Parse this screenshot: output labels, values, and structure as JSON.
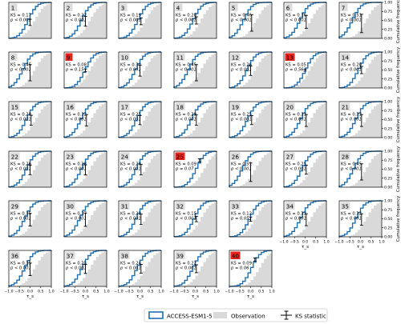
{
  "figure": {
    "xlabel": "τ_s",
    "ylabel": "Cumulative frequency",
    "x_ticks": [
      "−1.0",
      "−0.5",
      "0.0",
      "0.5",
      "1.0"
    ],
    "y_ticks": [
      "0.00",
      "0.25",
      "0.50",
      "0.75",
      "1.00"
    ],
    "colors": {
      "model_line": "#1f6fb3",
      "observation_fill": "#d9d9d9",
      "highlight_box": "#e8231c",
      "label_box": "#dcdcdc",
      "ks_bar": "#000000"
    }
  },
  "legend": {
    "items": [
      {
        "label": "ACCESS-ESM1-5",
        "kind": "step-line"
      },
      {
        "label": "Observation",
        "kind": "fill"
      },
      {
        "label": "KS statistic",
        "kind": "errorbar"
      }
    ]
  },
  "chart_data": {
    "type": "cdf-step-panels",
    "xlim": [
      -1.0,
      1.0
    ],
    "ylim": [
      0,
      1
    ],
    "grid": false,
    "legend_position": "bottom-right",
    "series_names": [
      "ACCESS-ESM1-5",
      "Observation"
    ],
    "panels": [
      {
        "id": "1",
        "ks": "KS = 0.17",
        "p": "p < 0.001",
        "highlight": false,
        "ks_x": 0.0,
        "ks_lo": 0.36,
        "ks_hi": 0.53
      },
      {
        "id": "2",
        "ks": "KS = 0.27",
        "p": "p < 0.001",
        "highlight": false,
        "ks_x": 0.0,
        "ks_lo": 0.34,
        "ks_hi": 0.61
      },
      {
        "id": "3",
        "ks": "KS = 0.19",
        "p": "p < 0.001",
        "highlight": false,
        "ks_x": 0.05,
        "ks_lo": 0.38,
        "ks_hi": 0.57
      },
      {
        "id": "4",
        "ks": "KS = 0.20",
        "p": "p < 0.001",
        "highlight": false,
        "ks_x": 0.05,
        "ks_lo": 0.4,
        "ks_hi": 0.6
      },
      {
        "id": "5",
        "ks": "KS = 0.46",
        "p": "p < 0.001",
        "highlight": false,
        "ks_x": 0.05,
        "ks_lo": 0.2,
        "ks_hi": 0.66
      },
      {
        "id": "6",
        "ks": "KS = 0.36",
        "p": "p < 0.001",
        "highlight": false,
        "ks_x": 0.05,
        "ks_lo": 0.28,
        "ks_hi": 0.64
      },
      {
        "id": "7",
        "ks": "KS = 0.51",
        "p": "p < 0.001",
        "highlight": false,
        "ks_x": 0.05,
        "ks_lo": 0.16,
        "ks_hi": 0.67
      },
      {
        "id": "8",
        "ks": "KS = 0.45",
        "p": "p < 0.001",
        "highlight": false,
        "ks_x": 0.0,
        "ks_lo": 0.2,
        "ks_hi": 0.65
      },
      {
        "id": "9",
        "ks": "KS = 0.08",
        "p": "p = 0.15",
        "highlight": true,
        "ks_x": 0.0,
        "ks_lo": 0.45,
        "ks_hi": 0.53
      },
      {
        "id": "10",
        "ks": "KS = 0.30",
        "p": "p < 0.001",
        "highlight": false,
        "ks_x": 0.0,
        "ks_lo": 0.33,
        "ks_hi": 0.63
      },
      {
        "id": "11",
        "ks": "KS = 0.45",
        "p": "p < 0.001",
        "highlight": false,
        "ks_x": 0.05,
        "ks_lo": 0.2,
        "ks_hi": 0.65
      },
      {
        "id": "12",
        "ks": "KS = 0.26",
        "p": "p < 0.001",
        "highlight": false,
        "ks_x": 0.0,
        "ks_lo": 0.35,
        "ks_hi": 0.61
      },
      {
        "id": "13",
        "ks": "KS = 0.05",
        "p": "p = 0.56",
        "highlight": true,
        "ks_x": 0.0,
        "ks_lo": 0.47,
        "ks_hi": 0.52
      },
      {
        "id": "14",
        "ks": "KS = 0.20",
        "p": "p < 0.001",
        "highlight": false,
        "ks_x": 0.05,
        "ks_lo": 0.4,
        "ks_hi": 0.6
      },
      {
        "id": "15",
        "ks": "KS = 0.28",
        "p": "p < 0.001",
        "highlight": false,
        "ks_x": 0.05,
        "ks_lo": 0.34,
        "ks_hi": 0.62
      },
      {
        "id": "16",
        "ks": "KS = 0.32",
        "p": "p < 0.001",
        "highlight": false,
        "ks_x": 0.05,
        "ks_lo": 0.32,
        "ks_hi": 0.64
      },
      {
        "id": "17",
        "ks": "KS = 0.25",
        "p": "p < 0.001",
        "highlight": false,
        "ks_x": 0.0,
        "ks_lo": 0.36,
        "ks_hi": 0.61
      },
      {
        "id": "18",
        "ks": "KS = 0.29",
        "p": "p < 0.001",
        "highlight": false,
        "ks_x": 0.05,
        "ks_lo": 0.34,
        "ks_hi": 0.63
      },
      {
        "id": "19",
        "ks": "KS = 0.25",
        "p": "p < 0.001",
        "highlight": false,
        "ks_x": 0.05,
        "ks_lo": 0.36,
        "ks_hi": 0.61
      },
      {
        "id": "20",
        "ks": "KS = 0.33",
        "p": "p < 0.001",
        "highlight": false,
        "ks_x": 0.05,
        "ks_lo": 0.31,
        "ks_hi": 0.64
      },
      {
        "id": "21",
        "ks": "KS = 0.33",
        "p": "p < 0.001",
        "highlight": false,
        "ks_x": 0.05,
        "ks_lo": 0.31,
        "ks_hi": 0.64
      },
      {
        "id": "22",
        "ks": "KS = 0.26",
        "p": "p < 0.001",
        "highlight": false,
        "ks_x": 0.0,
        "ks_lo": 0.35,
        "ks_hi": 0.61
      },
      {
        "id": "23",
        "ks": "KS = 0.28",
        "p": "p < 0.001",
        "highlight": false,
        "ks_x": 0.0,
        "ks_lo": 0.34,
        "ks_hi": 0.62
      },
      {
        "id": "24",
        "ks": "KS = 0.29",
        "p": "p < 0.001",
        "highlight": false,
        "ks_x": 0.05,
        "ks_lo": 0.34,
        "ks_hi": 0.63
      },
      {
        "id": "25",
        "ks": "KS = 0.09",
        "p": "p = 0.07",
        "highlight": true,
        "ks_x": 0.2,
        "ks_lo": 0.7,
        "ks_hi": 0.79
      },
      {
        "id": "26",
        "ks": "KS = 0.51",
        "p": "p < 0.001",
        "highlight": false,
        "ks_x": 0.0,
        "ks_lo": 0.16,
        "ks_hi": 0.67
      },
      {
        "id": "27",
        "ks": "KS = 0.25",
        "p": "p < 0.001",
        "highlight": false,
        "ks_x": 0.05,
        "ks_lo": 0.36,
        "ks_hi": 0.61
      },
      {
        "id": "28",
        "ks": "KS = 0.45",
        "p": "p < 0.001",
        "highlight": false,
        "ks_x": 0.05,
        "ks_lo": 0.2,
        "ks_hi": 0.65
      },
      {
        "id": "29",
        "ks": "KS = 0.35",
        "p": "p < 0.001",
        "highlight": false,
        "ks_x": 0.0,
        "ks_lo": 0.3,
        "ks_hi": 0.65
      },
      {
        "id": "30",
        "ks": "KS = 0.37",
        "p": "p < 0.001",
        "highlight": false,
        "ks_x": 0.0,
        "ks_lo": 0.29,
        "ks_hi": 0.66
      },
      {
        "id": "31",
        "ks": "KS = 0.29",
        "p": "p < 0.001",
        "highlight": false,
        "ks_x": 0.05,
        "ks_lo": 0.34,
        "ks_hi": 0.63
      },
      {
        "id": "32",
        "ks": "KS = 0.15",
        "p": "p < 0.001",
        "highlight": false,
        "ks_x": 0.05,
        "ks_lo": 0.42,
        "ks_hi": 0.57
      },
      {
        "id": "33",
        "ks": "KS = 0.12",
        "p": "p = 0.05",
        "highlight": false,
        "ks_x": 0.0,
        "ks_lo": 0.43,
        "ks_hi": 0.55
      },
      {
        "id": "34",
        "ks": "KS = 0.33",
        "p": "p < 0.001",
        "highlight": false,
        "ks_x": 0.05,
        "ks_lo": 0.31,
        "ks_hi": 0.64
      },
      {
        "id": "35",
        "ks": "KS = 0.32",
        "p": "p < 0.001",
        "highlight": false,
        "ks_x": 0.05,
        "ks_lo": 0.32,
        "ks_hi": 0.64
      },
      {
        "id": "36",
        "ks": "KS = 0.35",
        "p": "p < 0.001",
        "highlight": false,
        "ks_x": 0.0,
        "ks_lo": 0.3,
        "ks_hi": 0.65
      },
      {
        "id": "37",
        "ks": "KS = 0.25",
        "p": "p < 0.001",
        "highlight": false,
        "ks_x": 0.0,
        "ks_lo": 0.36,
        "ks_hi": 0.61
      },
      {
        "id": "38",
        "ks": "KS = 0.24",
        "p": "p < 0.001",
        "highlight": false,
        "ks_x": 0.05,
        "ks_lo": 0.37,
        "ks_hi": 0.61
      },
      {
        "id": "39",
        "ks": "KS = 0.22",
        "p": "p < 0.001",
        "highlight": false,
        "ks_x": 0.05,
        "ks_lo": 0.38,
        "ks_hi": 0.6
      },
      {
        "id": "40",
        "ks": "KS = 0.09",
        "p": "p = 0.06",
        "highlight": true,
        "ks_x": 0.2,
        "ks_lo": 0.7,
        "ks_hi": 0.79
      }
    ]
  }
}
